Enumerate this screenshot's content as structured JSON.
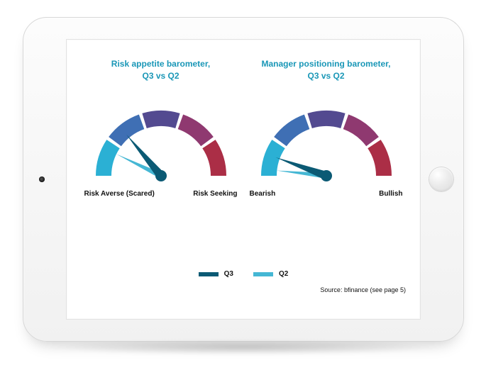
{
  "gauge_style": {
    "segments": 5,
    "segment_colors": [
      "#2bb0d4",
      "#3f6fb4",
      "#534a90",
      "#8f3970",
      "#ab2e46"
    ],
    "outer_radius": 92,
    "inner_radius": 70,
    "gap_deg": 3,
    "hub_color": "#0b5a74",
    "background": "#ffffff"
  },
  "needles": {
    "primary_color": "#0b5a74",
    "secondary_color": "#45b7d4",
    "primary_len": 76,
    "secondary_len": 70
  },
  "charts": [
    {
      "title": "Risk appetite barometer,\nQ3 vs Q2",
      "left_label": "Risk Averse (Scared)",
      "right_label": "Risk Seeking",
      "primary_angle_deg": 230,
      "secondary_angle_deg": 206
    },
    {
      "title": "Manager positioning barometer,\nQ3 vs Q2",
      "left_label": "Bearish",
      "right_label": "Bullish",
      "primary_angle_deg": 200,
      "secondary_angle_deg": 186
    }
  ],
  "legend": {
    "items": [
      {
        "label": "Q3",
        "color": "#0b5a74"
      },
      {
        "label": "Q2",
        "color": "#45b7d4"
      }
    ]
  },
  "source": "Source: bfinance (see page 5)"
}
